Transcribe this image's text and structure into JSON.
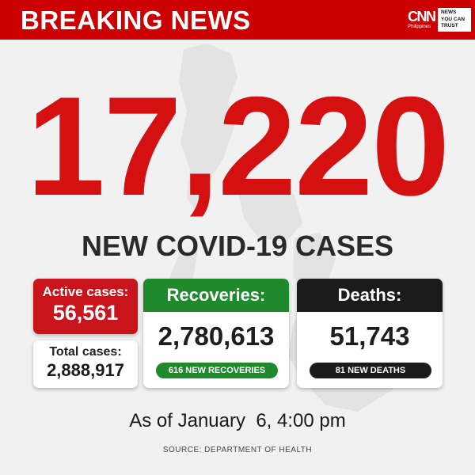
{
  "header": {
    "title": "BREAKING NEWS",
    "logo": "CNN",
    "logo_sub": "Philippines",
    "tagline": [
      "NEWS",
      "YOU CAN",
      "TRUST"
    ]
  },
  "main": {
    "new_cases": "17,220",
    "headline": "NEW COVID-19 CASES"
  },
  "stats": {
    "active": {
      "label": "Active cases:",
      "value": "56,561"
    },
    "total": {
      "label": "Total cases:",
      "value": "2,888,917"
    },
    "recoveries": {
      "label": "Recoveries:",
      "value": "2,780,613",
      "new": "616 NEW RECOVERIES"
    },
    "deaths": {
      "label": "Deaths:",
      "value": "51,743",
      "new": "81 NEW DEATHS"
    }
  },
  "footer": {
    "as_of": "As of January  6, 4:00 pm",
    "source": "SOURCE: DEPARTMENT OF HEALTH"
  },
  "colors": {
    "brand_red": "#cc0000",
    "number_red": "#d41010",
    "recovery_green": "#1e8a2c",
    "death_black": "#1b1b1b"
  }
}
